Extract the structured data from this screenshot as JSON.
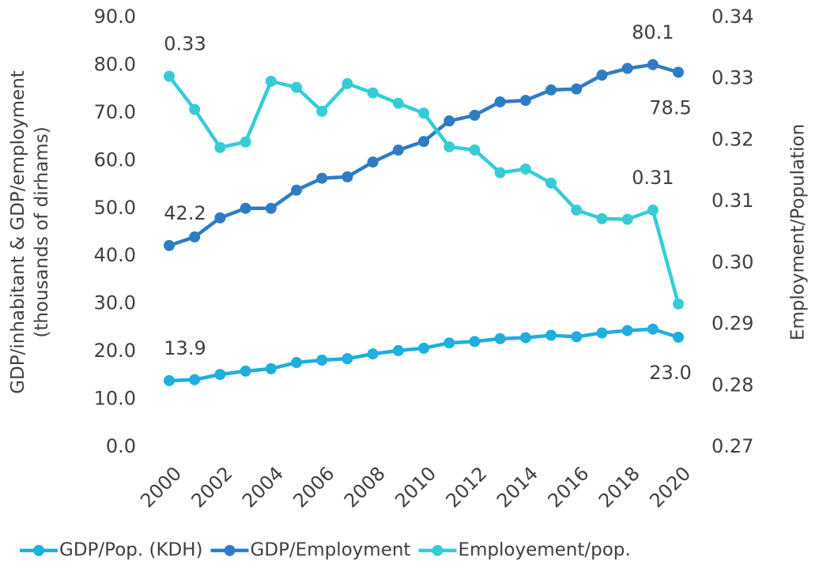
{
  "chart_data": {
    "type": "line",
    "y_label": "GDP/inhabitant & GDP/employment\n(thousands of dirhams)",
    "y2_label": "Employment/Population",
    "categories": [
      "2000",
      null,
      "2002",
      null,
      "2004",
      null,
      "2006",
      null,
      "2008",
      null,
      "2010",
      null,
      "2012",
      null,
      "2014",
      null,
      "2016",
      null,
      "2018",
      null,
      "2020"
    ],
    "ylim": [
      0,
      90
    ],
    "yticks": [
      {
        "value": 0,
        "label": "0.0"
      },
      {
        "value": 10,
        "label": "10.0"
      },
      {
        "value": 20,
        "label": "20.0"
      },
      {
        "value": 30,
        "label": "30.0"
      },
      {
        "value": 40,
        "label": "40.0"
      },
      {
        "value": 50,
        "label": "50.0"
      },
      {
        "value": 60,
        "label": "60.0"
      },
      {
        "value": 70,
        "label": "70.0"
      },
      {
        "value": 80,
        "label": "80.0"
      },
      {
        "value": 90,
        "label": "90.0"
      }
    ],
    "y2lim": [
      0.27,
      0.34
    ],
    "y2ticks": [
      0.27,
      {
        "value": 0.28,
        "label": "0.28"
      },
      0.29,
      {
        "value": 0.3,
        "label": "0.30"
      },
      0.31,
      0.32,
      0.33,
      0.34
    ],
    "legend": "bottom",
    "series": [
      {
        "name": "GDP/Pop. (KDH)",
        "color": "#1eaee0",
        "values": [
          13.9,
          14.1,
          15.2,
          15.9,
          16.4,
          17.7,
          18.2,
          18.5,
          19.5,
          20.2,
          20.7,
          21.8,
          22.1,
          22.7,
          22.9,
          23.4,
          23.1,
          23.9,
          24.4,
          24.7,
          23.0
        ],
        "value_labels": [
          "13.9",
          null,
          null,
          null,
          null,
          null,
          null,
          null,
          null,
          null,
          null,
          null,
          null,
          null,
          null,
          null,
          null,
          null,
          null,
          null,
          "23.0"
        ]
      },
      {
        "name": "GDP/Employment",
        "color": "#2e7dc4",
        "values": [
          42.2,
          44.0,
          48.0,
          50.0,
          50.0,
          53.8,
          56.3,
          56.6,
          59.7,
          62.2,
          64.0,
          68.3,
          69.5,
          72.3,
          72.6,
          74.8,
          75.0,
          77.9,
          79.3,
          80.1,
          78.5
        ]
      },
      {
        "name": "Employement/pop.",
        "color": "#35cdd5",
        "axis": "y2",
        "values": [
          0.3304,
          0.325,
          0.3188,
          0.3197,
          0.3296,
          0.3286,
          0.3247,
          0.3292,
          0.3277,
          0.326,
          0.3244,
          0.3189,
          0.3184,
          0.3147,
          0.3153,
          0.313,
          0.3086,
          0.3072,
          0.3071,
          0.3086,
          0.2933
        ],
        "value_labels": [
          "0.33",
          null,
          null,
          null,
          null,
          null,
          null,
          null,
          null,
          null,
          null,
          null,
          null,
          null,
          null,
          null,
          null,
          null,
          null,
          "0.31",
          null
        ]
      }
    ],
    "labeled_points": {
      "1": [
        0,
        19,
        20
      ]
    }
  }
}
